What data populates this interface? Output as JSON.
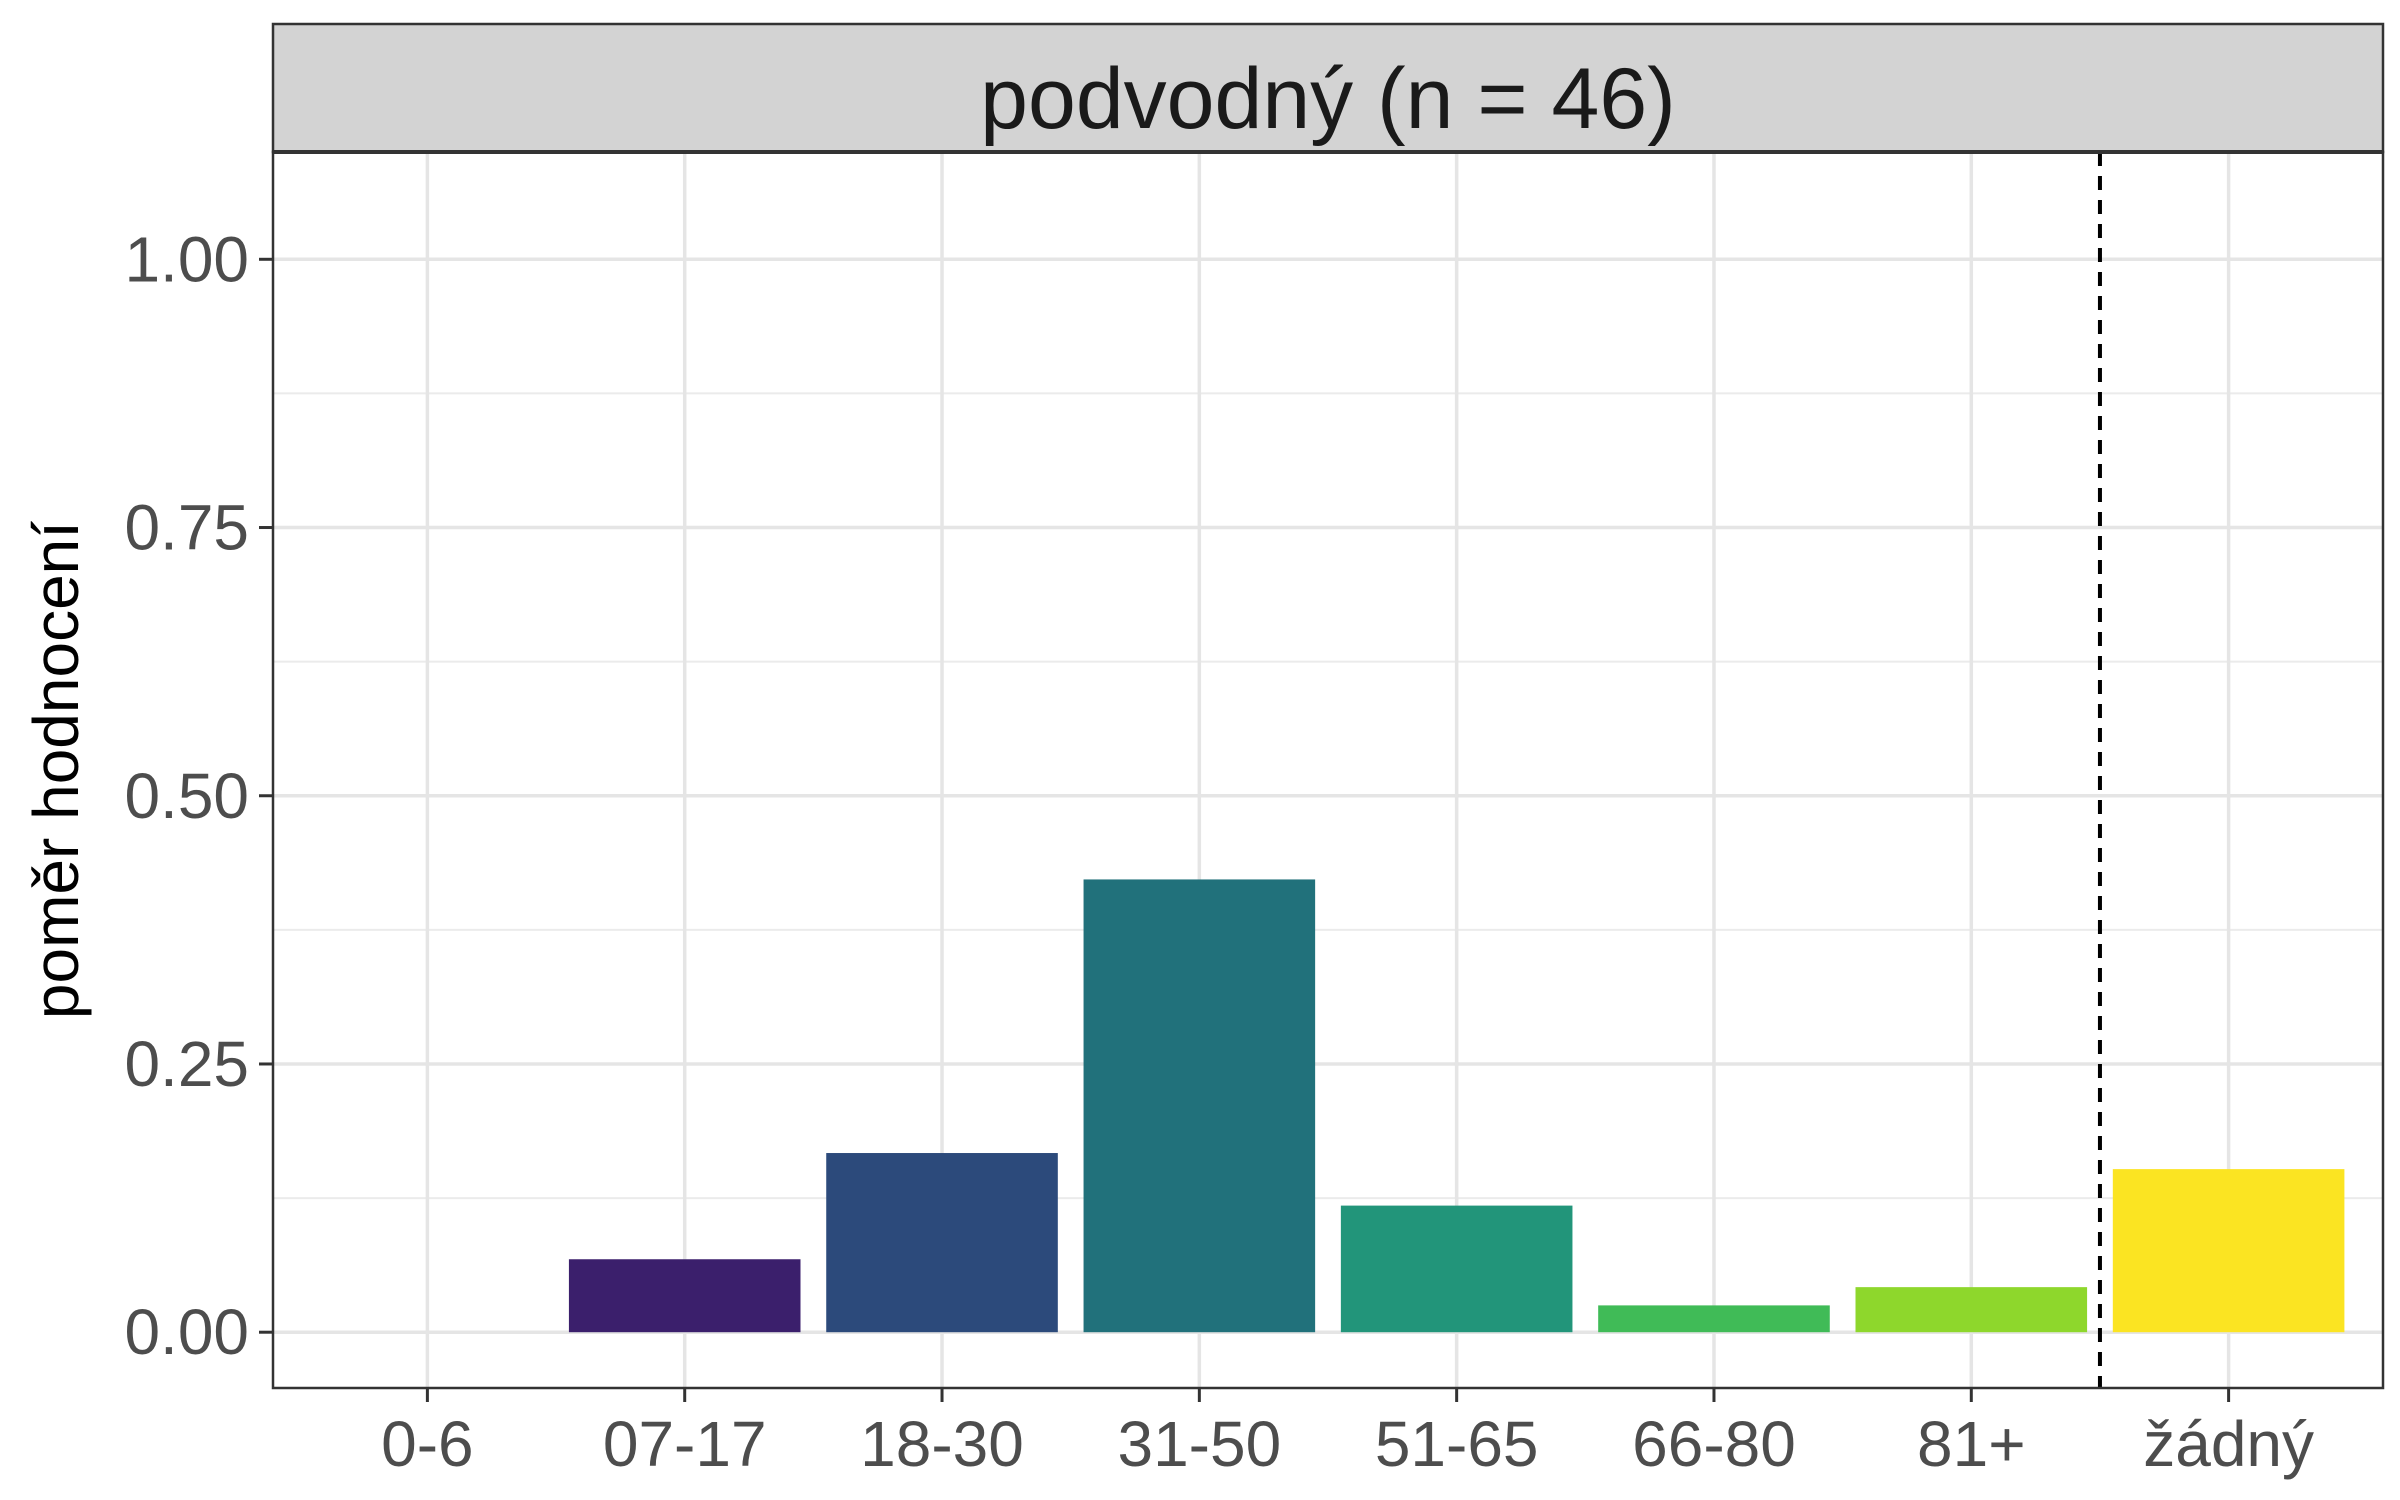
{
  "chart_data": {
    "type": "bar",
    "facet_title": "podvodný (n = 46)",
    "ylabel": "poměr hodnocení",
    "xlabel": "",
    "ylim": [
      -0.052,
      1.1
    ],
    "yticks": [
      0.0,
      0.25,
      0.5,
      0.75,
      1.0
    ],
    "ytick_labels": [
      "0.00",
      "0.25",
      "0.50",
      "0.75",
      "1.00"
    ],
    "categories": [
      "0-6",
      "07-17",
      "18-30",
      "31-50",
      "51-65",
      "66-80",
      "81+",
      "žádný"
    ],
    "values": [
      0.0,
      0.068,
      0.167,
      0.422,
      0.118,
      0.025,
      0.042,
      0.152
    ],
    "colors": [
      "#440154",
      "#3b1f6c",
      "#2c4a7b",
      "#21717b",
      "#22957a",
      "#40bb57",
      "#8ed72c",
      "#fbe422"
    ],
    "reference_line": {
      "style": "dashed",
      "between": [
        "81+",
        "žádný"
      ]
    },
    "grid": true,
    "legend": "none"
  }
}
